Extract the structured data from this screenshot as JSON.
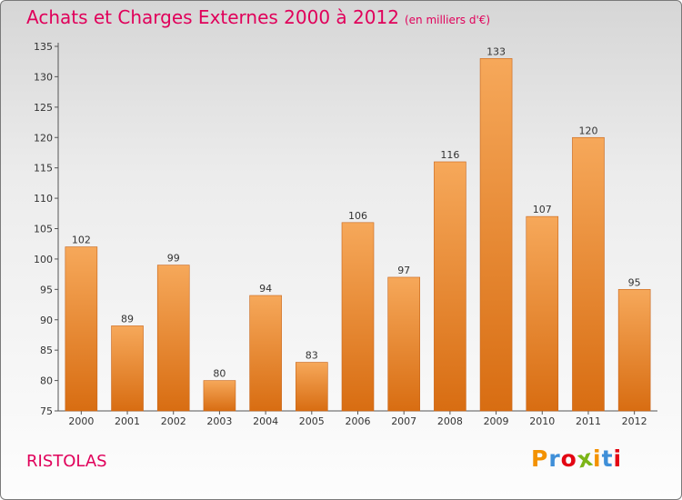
{
  "header": {
    "title": "Achats et Charges Externes 2000 à 2012",
    "unit": "(en milliers d'€)"
  },
  "footer": {
    "commune": "RISTOLAS",
    "logo_letters": [
      "P",
      "r",
      "o",
      "x",
      "i",
      "t",
      "i"
    ],
    "logo_colors": [
      "#f39200",
      "#3f8fd8",
      "#e30613",
      "#7cb518",
      "#f39200",
      "#3f8fd8",
      "#e30613"
    ]
  },
  "chart_data": {
    "type": "bar",
    "title": "Achats et Charges Externes 2000 à 2012",
    "subtitle": "(en milliers d'€)",
    "categories": [
      "2000",
      "2001",
      "2002",
      "2003",
      "2004",
      "2005",
      "2006",
      "2007",
      "2008",
      "2009",
      "2010",
      "2011",
      "2012"
    ],
    "values": [
      102,
      89,
      99,
      80,
      94,
      83,
      106,
      97,
      116,
      133,
      107,
      120,
      95
    ],
    "ylim": [
      75,
      135
    ],
    "yticks": [
      75,
      80,
      85,
      90,
      95,
      100,
      105,
      110,
      115,
      120,
      125,
      130,
      135
    ],
    "grid": false,
    "bar_color": "#f0963a"
  }
}
